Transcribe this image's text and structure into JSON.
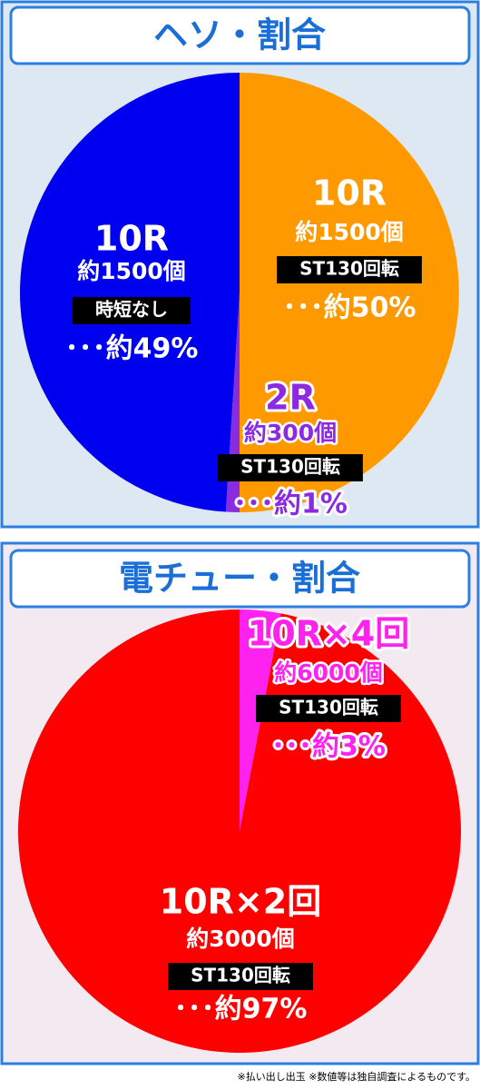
{
  "chart_data": [
    {
      "type": "pie",
      "title": "ヘソ・割合",
      "categories": [
        "10R",
        "2R",
        "10R"
      ],
      "payouts": [
        "約1500個",
        "約300個",
        "約1500個"
      ],
      "modes": [
        "ST130回転",
        "ST130回転",
        "時短なし"
      ],
      "values": [
        50,
        1,
        49
      ],
      "value_labels": [
        "･･･約50%",
        "･･･約1%",
        "･･･約49%"
      ],
      "colors": [
        "#ff9900",
        "#8a2be2",
        "#0000f0"
      ]
    },
    {
      "type": "pie",
      "title": "電チュー・割合",
      "categories": [
        "10R×4回",
        "10R×2回"
      ],
      "payouts": [
        "約6000個",
        "約3000個"
      ],
      "modes": [
        "ST130回転",
        "ST130回転"
      ],
      "values": [
        3,
        97
      ],
      "value_labels": [
        "･･･約3%",
        "･･･約97%"
      ],
      "colors": [
        "#ff22ee",
        "#ff0000"
      ]
    }
  ],
  "footnote": "※払い出し出玉 ※数値等は独自調査によるものです。"
}
